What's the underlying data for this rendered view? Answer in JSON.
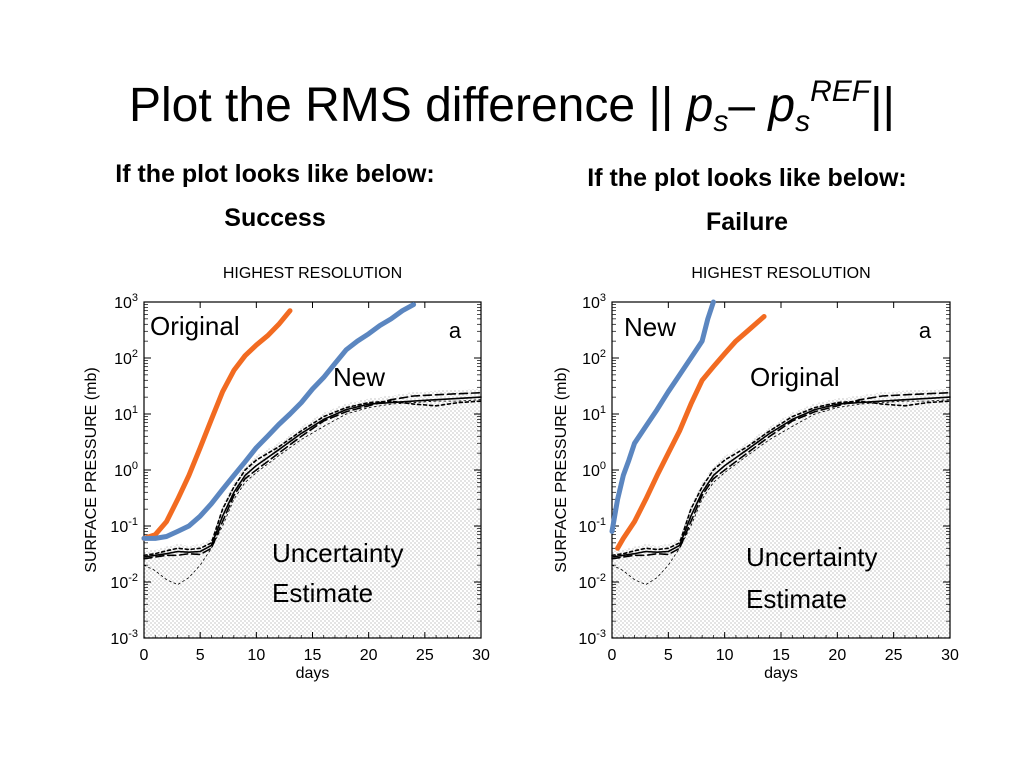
{
  "slide": {
    "title_main": "Plot the RMS difference || ",
    "title_p1": "p",
    "title_sub1": "s",
    "title_dash": "– ",
    "title_p2": "p",
    "title_sub2": "s",
    "title_sup": "REF",
    "title_end": "||"
  },
  "panels": [
    {
      "heading": "If the plot looks like below:",
      "verdict": "Success"
    },
    {
      "heading": "If the plot looks like below:",
      "verdict": "Failure"
    }
  ],
  "colors": {
    "original": "#f26b21",
    "new": "#5b86c0",
    "ensemble": "#000000"
  },
  "chart_data": [
    {
      "type": "line",
      "title": "HIGHEST RESOLUTION",
      "xlabel": "days",
      "ylabel": "SURFACE PRESSURE (mb)",
      "xlim": [
        0,
        30
      ],
      "ylim": [
        0.001,
        1000
      ],
      "yscale": "log",
      "x_ticks": [
        "0",
        "5",
        "10",
        "15",
        "20",
        "25",
        "30"
      ],
      "y_ticks": [
        {
          "base": "10",
          "exp": "3"
        },
        {
          "base": "10",
          "exp": "2"
        },
        {
          "base": "10",
          "exp": "1"
        },
        {
          "base": "10",
          "exp": "0"
        },
        {
          "base": "10",
          "exp": "-1"
        },
        {
          "base": "10",
          "exp": "-2"
        },
        {
          "base": "10",
          "exp": "-3"
        }
      ],
      "panel_label": "a",
      "annotations": [
        "Original",
        "New",
        "Uncertainty",
        "Estimate"
      ],
      "series": [
        {
          "name": "Original",
          "color": "#f26b21",
          "x": [
            0,
            1,
            2,
            3,
            4,
            5,
            6,
            7,
            8,
            9,
            10,
            11,
            12,
            13
          ],
          "y": [
            0.06,
            0.07,
            0.12,
            0.3,
            0.8,
            2.5,
            8,
            25,
            60,
            110,
            170,
            250,
            400,
            700
          ]
        },
        {
          "name": "New",
          "color": "#5b86c0",
          "x": [
            0,
            1,
            2,
            3,
            4,
            5,
            6,
            7,
            8,
            9,
            10,
            11,
            12,
            13,
            14,
            15,
            16,
            17,
            18,
            19,
            20,
            21,
            22,
            23,
            24
          ],
          "y": [
            0.06,
            0.06,
            0.065,
            0.08,
            0.1,
            0.15,
            0.25,
            0.45,
            0.8,
            1.4,
            2.5,
            4,
            6.5,
            10,
            16,
            28,
            45,
            80,
            140,
            200,
            270,
            380,
            500,
            700,
            900
          ]
        },
        {
          "name": "",
          "color": "#000000",
          "x": [
            0,
            1,
            2,
            3,
            4,
            5,
            6,
            7,
            8,
            9,
            10,
            12,
            14,
            16,
            18,
            20,
            22,
            24,
            26,
            28,
            30
          ],
          "y": [
            0.028,
            0.03,
            0.032,
            0.035,
            0.034,
            0.035,
            0.045,
            0.15,
            0.4,
            0.8,
            1.2,
            2.3,
            4.5,
            8,
            12,
            15,
            16,
            17,
            18,
            19,
            20
          ]
        },
        {
          "name": "",
          "color": "#000000",
          "x": [
            0,
            1,
            2,
            3,
            4,
            5,
            6,
            7,
            8,
            9,
            10,
            12,
            14,
            16,
            18,
            20,
            22,
            24,
            26,
            28,
            30
          ],
          "y": [
            0.026,
            0.028,
            0.03,
            0.03,
            0.032,
            0.031,
            0.04,
            0.12,
            0.35,
            0.7,
            1.0,
            2.0,
            4.0,
            7.5,
            11,
            14,
            18,
            21,
            22,
            23,
            24
          ]
        },
        {
          "name": "",
          "color": "#000000",
          "x": [
            0,
            1,
            2,
            3,
            4,
            5,
            6,
            7,
            8,
            9,
            10,
            12,
            14,
            16,
            18,
            20,
            22,
            24,
            26,
            28,
            30
          ],
          "y": [
            0.03,
            0.032,
            0.036,
            0.04,
            0.038,
            0.04,
            0.05,
            0.2,
            0.5,
            1.0,
            1.5,
            2.6,
            5,
            9,
            13,
            16,
            17,
            15,
            14,
            16,
            17
          ]
        },
        {
          "name": "",
          "color": "#000000",
          "x": [
            0,
            1,
            2,
            3,
            4,
            5,
            6,
            7,
            8,
            9,
            10,
            12,
            14,
            16,
            18,
            20,
            22,
            24,
            26,
            28,
            30
          ],
          "y": [
            0.02,
            0.016,
            0.011,
            0.009,
            0.012,
            0.02,
            0.04,
            0.1,
            0.3,
            0.6,
            0.9,
            1.8,
            3.5,
            6,
            10,
            13,
            15,
            16,
            17,
            17,
            18
          ]
        }
      ]
    },
    {
      "type": "line",
      "title": "HIGHEST RESOLUTION",
      "xlabel": "days",
      "ylabel": "SURFACE PRESSURE (mb)",
      "xlim": [
        0,
        30
      ],
      "ylim": [
        0.001,
        1000
      ],
      "yscale": "log",
      "x_ticks": [
        "0",
        "5",
        "10",
        "15",
        "20",
        "25",
        "30"
      ],
      "y_ticks": [
        {
          "base": "10",
          "exp": "3"
        },
        {
          "base": "10",
          "exp": "2"
        },
        {
          "base": "10",
          "exp": "1"
        },
        {
          "base": "10",
          "exp": "0"
        },
        {
          "base": "10",
          "exp": "-1"
        },
        {
          "base": "10",
          "exp": "-2"
        },
        {
          "base": "10",
          "exp": "-3"
        }
      ],
      "panel_label": "a",
      "annotations": [
        "New",
        "Original",
        "Uncertainty",
        "Estimate"
      ],
      "series": [
        {
          "name": "New",
          "color": "#5b86c0",
          "x": [
            0,
            0.5,
            1,
            1.5,
            2,
            3,
            4,
            5,
            6,
            7,
            8,
            8.5,
            9
          ],
          "y": [
            0.08,
            0.3,
            0.8,
            1.5,
            3,
            6,
            12,
            25,
            50,
            100,
            200,
            500,
            1000
          ]
        },
        {
          "name": "Original",
          "color": "#f26b21",
          "x": [
            0.5,
            1,
            2,
            3,
            4,
            5,
            6,
            7,
            8,
            9,
            10,
            11,
            12,
            13.5
          ],
          "y": [
            0.04,
            0.06,
            0.12,
            0.3,
            0.8,
            2,
            5,
            15,
            40,
            70,
            120,
            200,
            300,
            550
          ]
        },
        {
          "name": "",
          "color": "#000000",
          "x": [
            0,
            1,
            2,
            3,
            4,
            5,
            6,
            7,
            8,
            9,
            10,
            12,
            14,
            16,
            18,
            20,
            22,
            24,
            26,
            28,
            30
          ],
          "y": [
            0.028,
            0.03,
            0.032,
            0.035,
            0.034,
            0.035,
            0.045,
            0.15,
            0.4,
            0.8,
            1.2,
            2.3,
            4.5,
            8,
            12,
            15,
            16,
            17,
            18,
            19,
            20
          ]
        },
        {
          "name": "",
          "color": "#000000",
          "x": [
            0,
            1,
            2,
            3,
            4,
            5,
            6,
            7,
            8,
            9,
            10,
            12,
            14,
            16,
            18,
            20,
            22,
            24,
            26,
            28,
            30
          ],
          "y": [
            0.026,
            0.028,
            0.03,
            0.03,
            0.032,
            0.031,
            0.04,
            0.12,
            0.35,
            0.7,
            1.0,
            2.0,
            4.0,
            7.5,
            11,
            14,
            18,
            21,
            22,
            23,
            24
          ]
        },
        {
          "name": "",
          "color": "#000000",
          "x": [
            0,
            1,
            2,
            3,
            4,
            5,
            6,
            7,
            8,
            9,
            10,
            12,
            14,
            16,
            18,
            20,
            22,
            24,
            26,
            28,
            30
          ],
          "y": [
            0.03,
            0.032,
            0.036,
            0.04,
            0.038,
            0.04,
            0.05,
            0.2,
            0.5,
            1.0,
            1.5,
            2.6,
            5,
            9,
            13,
            16,
            17,
            15,
            14,
            16,
            17
          ]
        },
        {
          "name": "",
          "color": "#000000",
          "x": [
            0,
            1,
            2,
            3,
            4,
            5,
            6,
            7,
            8,
            9,
            10,
            12,
            14,
            16,
            18,
            20,
            22,
            24,
            26,
            28,
            30
          ],
          "y": [
            0.02,
            0.016,
            0.011,
            0.009,
            0.012,
            0.02,
            0.04,
            0.1,
            0.3,
            0.6,
            0.9,
            1.8,
            3.5,
            6,
            10,
            13,
            15,
            16,
            17,
            17,
            18
          ]
        }
      ]
    }
  ]
}
